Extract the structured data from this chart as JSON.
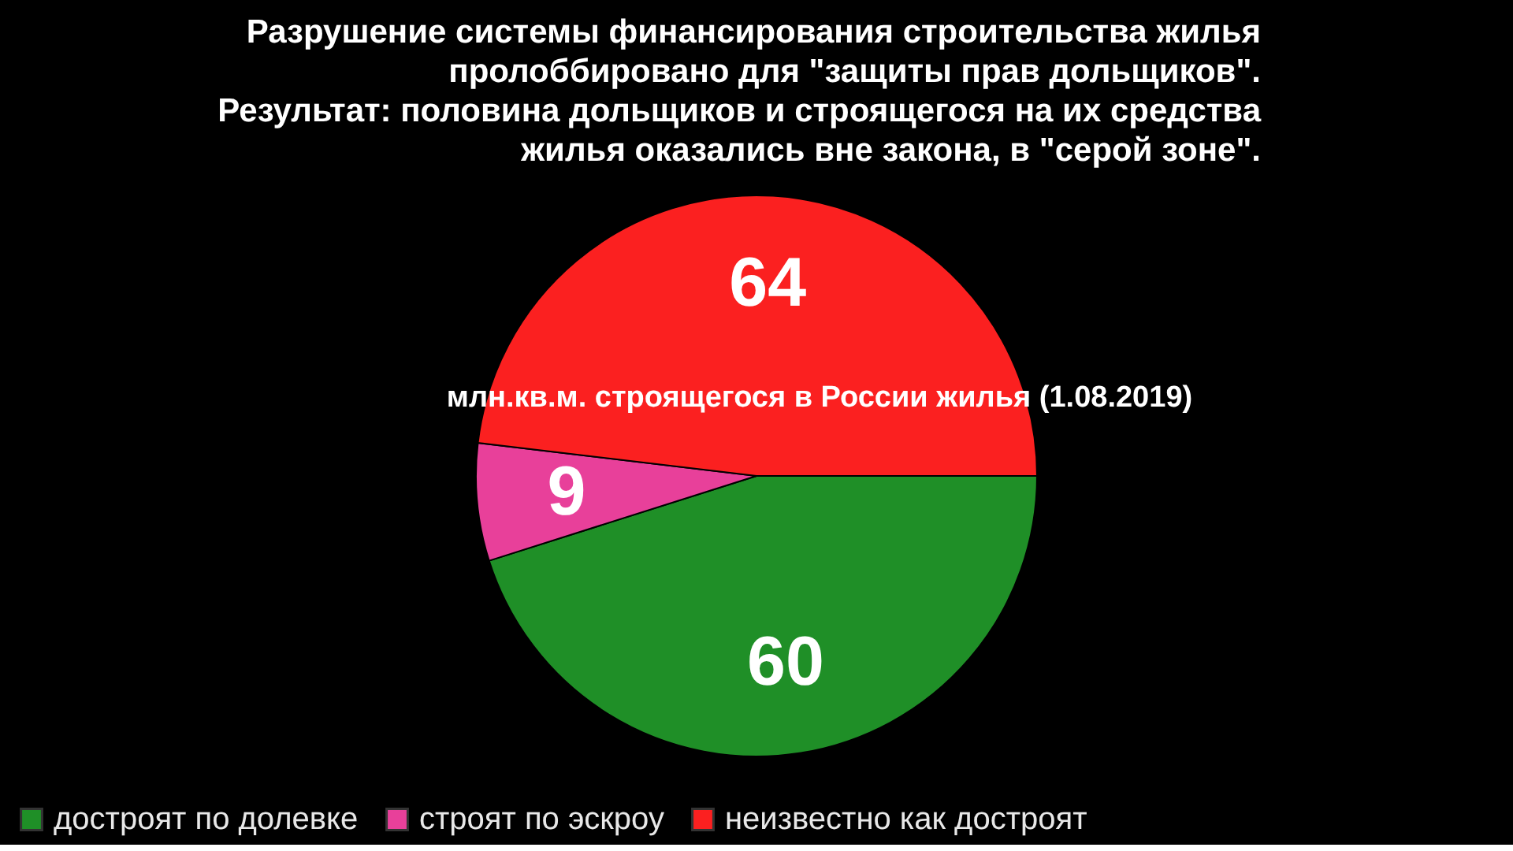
{
  "chart_data": {
    "type": "pie",
    "title": "Разрушение системы финансирования строительства жилья\nпролоббировано для \"защиты прав дольщиков\".\nРезультат: половина дольщиков и строящегося на их средства\nжилья оказались вне закона, в \"серой зоне\".",
    "categories": [
      "достроят по долевке",
      "строят по эскроу",
      "неизвестно как достроят"
    ],
    "values": [
      60,
      9,
      64
    ],
    "colors": [
      "#1f8f27",
      "#e8409a",
      "#fb2020"
    ],
    "data_labels": true,
    "legend": "bottom",
    "annotations": [
      "млн.кв.м. строящегося  в России жилья (1.08.2019)"
    ]
  }
}
